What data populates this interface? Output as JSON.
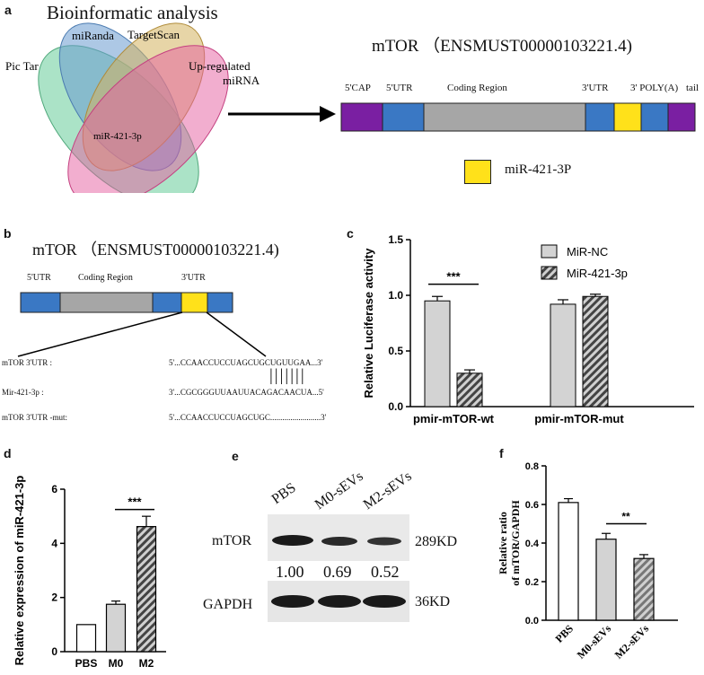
{
  "panel_labels": {
    "a": "a",
    "b": "b",
    "c": "c",
    "d": "d",
    "e": "e",
    "f": "f"
  },
  "panel_a": {
    "title": "Bioinformatic analysis",
    "venn_sets": [
      {
        "label": "Pic Tar",
        "color": "#66cc99"
      },
      {
        "label": "miRanda",
        "color": "#6699cc"
      },
      {
        "label": "TargetScan",
        "color": "#ccaa55"
      },
      {
        "label": "Up-regulated miRNA",
        "label_line1": "Up-regulated",
        "label_line2": "miRNA",
        "color": "#e0609a"
      }
    ],
    "center_label": "miR-421-3p",
    "gene_title": "mTOR （ENSMUST00000103221.4)",
    "transcript_segments": [
      "5'CAP",
      "5'UTR",
      "Coding Region",
      "3'UTR",
      "3' POLY(A)",
      "tail"
    ],
    "segment_colors": {
      "cap": "#7a1fa2",
      "utr": "#3a78c4",
      "coding": "#a6a6a6",
      "site": "#ffe11a"
    },
    "legend_label": "miR-421-3P"
  },
  "panel_b": {
    "gene_title": "mTOR （ENSMUST00000103221.4)",
    "segments": [
      "5'UTR",
      "Coding Region",
      "3'UTR"
    ],
    "rows": [
      {
        "name": "mTOR 3'UTR :",
        "seq": "5'...CCAACCUCCUAGCUGCUGUUGAA...3'"
      },
      {
        "name": "Mir-421-3p :",
        "seq": "3'...CGCGGGUUAAUUACAGACAACUA...5'"
      },
      {
        "name": "mTOR 3'UTR -mut:",
        "seq": "5'...CCAACCUCCUAGCUGC.........................3'"
      }
    ],
    "pairing_bars": "|||||||"
  },
  "chart_data": [
    {
      "panel": "c",
      "type": "bar",
      "categories": [
        "pmir-mTOR-wt",
        "pmir-mTOR-mut"
      ],
      "series": [
        {
          "name": "MiR-NC",
          "values": [
            0.95,
            0.92
          ],
          "errors": [
            0.04,
            0.04
          ],
          "color": "#d3d3d3"
        },
        {
          "name": "MiR-421-3p",
          "values": [
            0.3,
            0.99
          ],
          "errors": [
            0.03,
            0.02
          ],
          "color": "#555555",
          "pattern": "hatch"
        }
      ],
      "ylabel": "Relative Luciferase activity",
      "ylim": [
        0,
        1.5
      ],
      "yticks": [
        "0.0",
        "0.5",
        "1.0",
        "1.5"
      ],
      "significance": [
        {
          "label": "***"
        }
      ],
      "legend": "top-right"
    },
    {
      "panel": "d",
      "type": "bar",
      "categories": [
        "PBS",
        "M0",
        "M2"
      ],
      "values": [
        1.0,
        1.75,
        4.62
      ],
      "errors": [
        0.0,
        0.12,
        0.38
      ],
      "colors": [
        "#ffffff",
        "#d3d3d3",
        "#555555"
      ],
      "ylabel": "Relative expression of miR-421-3p",
      "ylim": [
        0,
        6
      ],
      "yticks": [
        "0",
        "2",
        "4",
        "6"
      ],
      "significance": [
        {
          "label": "***"
        }
      ]
    },
    {
      "panel": "f",
      "type": "bar",
      "categories": [
        "PBS",
        "M0-sEVs",
        "M2-sEVs"
      ],
      "values": [
        0.61,
        0.42,
        0.32
      ],
      "errors": [
        0.02,
        0.03,
        0.02
      ],
      "colors": [
        "#ffffff",
        "#d3d3d3",
        "#888888"
      ],
      "ylabel": "Relative ratio of mTOR/GAPDH",
      "ylabel_line1": "Relative ratio",
      "ylabel_line2": "of mTOR/GAPDH",
      "ylim": [
        0,
        0.8
      ],
      "yticks": [
        "0.0",
        "0.2",
        "0.4",
        "0.6",
        "0.8"
      ],
      "significance": [
        {
          "label": "**"
        }
      ]
    }
  ],
  "panel_e": {
    "lanes": [
      "PBS",
      "M0-sEVs",
      "M2-sEVs"
    ],
    "proteins": [
      {
        "name": "mTOR",
        "size": "289KD",
        "band_intensity": [
          1.0,
          0.69,
          0.52
        ]
      },
      {
        "name": "GAPDH",
        "size": "36KD",
        "band_intensity": [
          1.0,
          1.0,
          1.0
        ]
      }
    ],
    "quant": [
      "1.00",
      "0.69",
      "0.52"
    ]
  }
}
